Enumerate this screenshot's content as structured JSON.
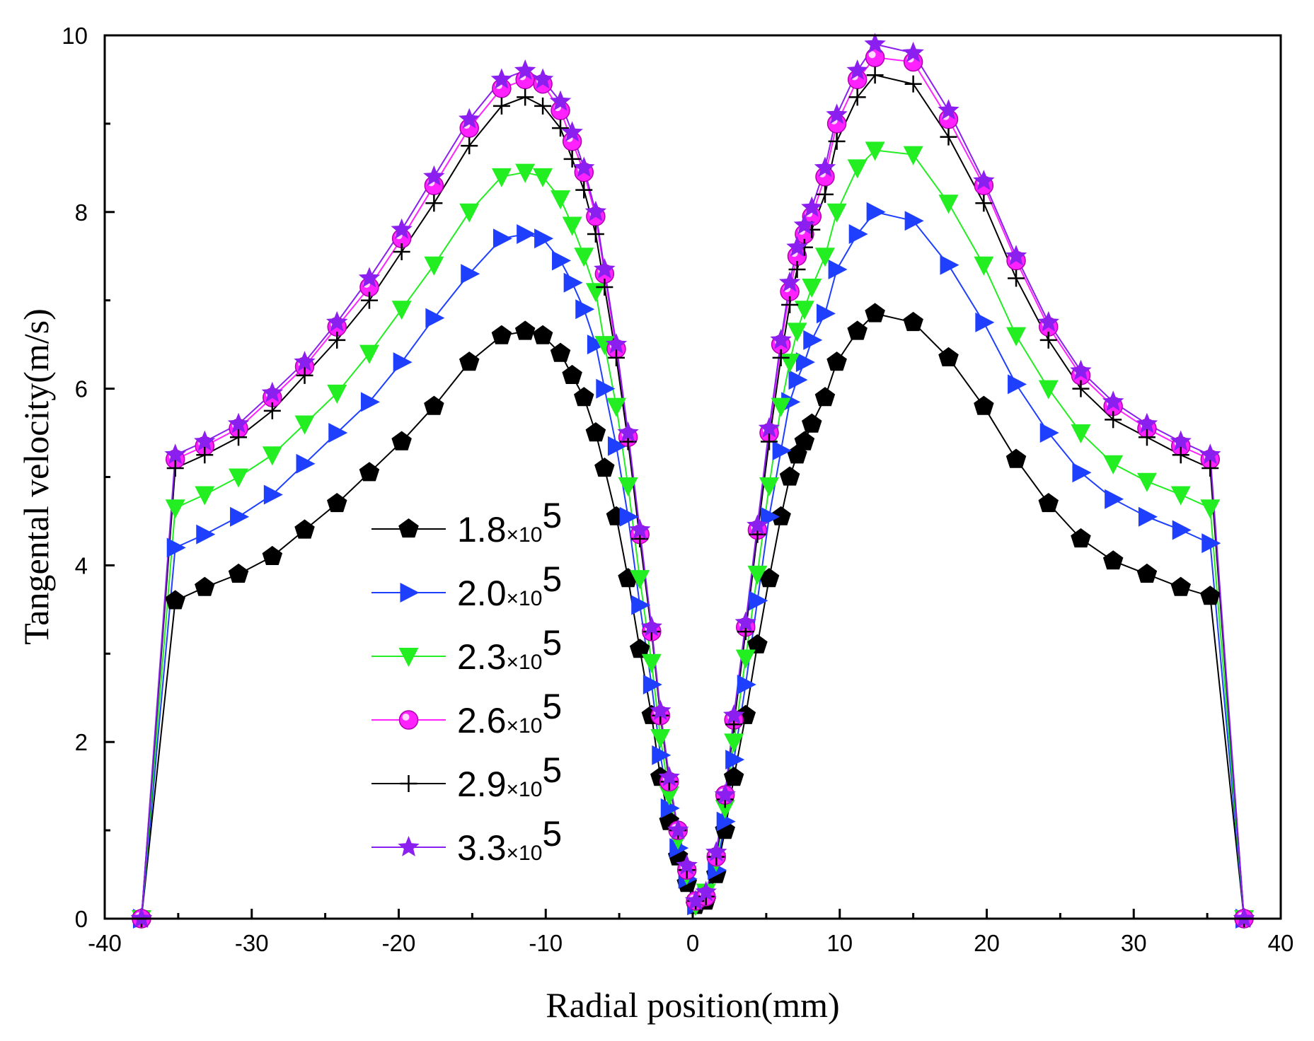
{
  "chart_data": {
    "type": "line",
    "title": "",
    "xlabel": "Radial position(mm)",
    "ylabel": "Tangental velocity(m/s)",
    "xlim": [
      -40,
      40
    ],
    "ylim": [
      0,
      10
    ],
    "x_ticks": [
      -40,
      -30,
      -20,
      -10,
      0,
      10,
      20,
      30,
      40
    ],
    "y_ticks": [
      0,
      2,
      4,
      6,
      8,
      10
    ],
    "grid": false,
    "legend_position": "center-left",
    "x": [
      -37.5,
      -35.2,
      -33.2,
      -30.9,
      -28.6,
      -26.4,
      -24.2,
      -22.0,
      -19.8,
      -17.6,
      -15.2,
      -13.0,
      -11.4,
      -10.2,
      -9.0,
      -8.2,
      -7.4,
      -6.6,
      -6.0,
      -5.2,
      -4.4,
      -3.6,
      -2.8,
      -2.2,
      -1.6,
      -1.0,
      -0.4,
      0.2,
      0.9,
      1.6,
      2.2,
      2.8,
      3.6,
      4.4,
      5.2,
      6.0,
      6.6,
      7.1,
      7.6,
      8.1,
      9.0,
      9.8,
      11.2,
      12.4,
      15.0,
      17.4,
      19.8,
      22.0,
      24.2,
      26.4,
      28.6,
      30.9,
      33.2,
      35.2,
      37.5
    ],
    "series": [
      {
        "name": "1.8×10^5",
        "coef": "1.8",
        "exp": "5",
        "color": "#000000",
        "marker": "pentagon",
        "values": [
          0.0,
          3.6,
          3.75,
          3.9,
          4.1,
          4.4,
          4.7,
          5.05,
          5.4,
          5.8,
          6.3,
          6.6,
          6.65,
          6.6,
          6.4,
          6.15,
          5.9,
          5.5,
          5.1,
          4.55,
          3.85,
          3.05,
          2.3,
          1.6,
          1.1,
          0.7,
          0.4,
          0.15,
          0.2,
          0.5,
          1.0,
          1.6,
          2.3,
          3.1,
          3.85,
          4.55,
          5.0,
          5.25,
          5.4,
          5.6,
          5.9,
          6.3,
          6.65,
          6.85,
          6.75,
          6.35,
          5.8,
          5.2,
          4.7,
          4.3,
          4.05,
          3.9,
          3.75,
          3.65,
          0.0
        ]
      },
      {
        "name": "2.0×10^5",
        "coef": "2.0",
        "exp": "5",
        "color": "#1f3fff",
        "marker": "triangle-right",
        "values": [
          0.0,
          4.2,
          4.35,
          4.55,
          4.8,
          5.15,
          5.5,
          5.85,
          6.3,
          6.8,
          7.3,
          7.7,
          7.75,
          7.7,
          7.45,
          7.2,
          6.9,
          6.5,
          6.0,
          5.35,
          4.55,
          3.55,
          2.65,
          1.85,
          1.25,
          0.8,
          0.45,
          0.15,
          0.25,
          0.55,
          1.1,
          1.8,
          2.65,
          3.6,
          4.55,
          5.3,
          5.85,
          6.1,
          6.3,
          6.55,
          6.85,
          7.35,
          7.75,
          8.0,
          7.9,
          7.4,
          6.75,
          6.05,
          5.5,
          5.05,
          4.75,
          4.55,
          4.4,
          4.25,
          0.0
        ]
      },
      {
        "name": "2.3×10^5",
        "coef": "2.3",
        "exp": "5",
        "color": "#22ee22",
        "marker": "triangle-down",
        "values": [
          0.0,
          4.65,
          4.8,
          5.0,
          5.25,
          5.6,
          5.95,
          6.4,
          6.9,
          7.4,
          8.0,
          8.4,
          8.45,
          8.4,
          8.15,
          7.85,
          7.5,
          7.1,
          6.5,
          5.8,
          4.9,
          3.85,
          2.9,
          2.05,
          1.4,
          0.9,
          0.5,
          0.15,
          0.3,
          0.65,
          1.25,
          2.0,
          2.95,
          3.9,
          4.9,
          5.8,
          6.3,
          6.65,
          6.9,
          7.15,
          7.5,
          8.0,
          8.5,
          8.7,
          8.65,
          8.1,
          7.4,
          6.6,
          6.0,
          5.5,
          5.15,
          4.95,
          4.8,
          4.65,
          0.0
        ]
      },
      {
        "name": "2.6×10^5",
        "coef": "2.6",
        "exp": "5",
        "color": "#ff22ff",
        "marker": "circle",
        "values": [
          0.0,
          5.2,
          5.35,
          5.55,
          5.9,
          6.25,
          6.7,
          7.15,
          7.7,
          8.3,
          8.95,
          9.4,
          9.5,
          9.45,
          9.15,
          8.8,
          8.45,
          7.95,
          7.3,
          6.45,
          5.45,
          4.35,
          3.25,
          2.3,
          1.55,
          1.0,
          0.55,
          0.2,
          0.25,
          0.7,
          1.4,
          2.25,
          3.3,
          4.4,
          5.5,
          6.5,
          7.1,
          7.5,
          7.75,
          7.95,
          8.4,
          9.0,
          9.5,
          9.75,
          9.7,
          9.05,
          8.3,
          7.45,
          6.7,
          6.15,
          5.8,
          5.55,
          5.35,
          5.2,
          0.0
        ]
      },
      {
        "name": "2.9×10^5",
        "coef": "2.9",
        "exp": "5",
        "color": "#000000",
        "marker": "plus",
        "values": [
          0.0,
          5.1,
          5.25,
          5.45,
          5.75,
          6.15,
          6.55,
          7.0,
          7.55,
          8.1,
          8.75,
          9.2,
          9.3,
          9.2,
          8.95,
          8.6,
          8.25,
          7.75,
          7.15,
          6.35,
          5.4,
          4.3,
          3.25,
          2.3,
          1.55,
          1.0,
          0.55,
          0.2,
          0.25,
          0.7,
          1.35,
          2.2,
          3.25,
          4.35,
          5.4,
          6.35,
          6.95,
          7.35,
          7.6,
          7.8,
          8.2,
          8.8,
          9.3,
          9.55,
          9.45,
          8.85,
          8.1,
          7.25,
          6.55,
          6.0,
          5.65,
          5.45,
          5.25,
          5.1,
          0.0
        ]
      },
      {
        "name": "3.3×10^5",
        "coef": "3.3",
        "exp": "5",
        "color": "#8b1fef",
        "marker": "star",
        "values": [
          0.0,
          5.25,
          5.4,
          5.6,
          5.95,
          6.3,
          6.75,
          7.25,
          7.8,
          8.4,
          9.05,
          9.5,
          9.6,
          9.5,
          9.25,
          8.9,
          8.5,
          8.0,
          7.35,
          6.5,
          5.5,
          4.4,
          3.3,
          2.35,
          1.6,
          1.0,
          0.6,
          0.2,
          0.3,
          0.75,
          1.4,
          2.3,
          3.35,
          4.45,
          5.55,
          6.55,
          7.2,
          7.6,
          7.85,
          8.05,
          8.5,
          9.1,
          9.6,
          9.9,
          9.8,
          9.15,
          8.35,
          7.5,
          6.75,
          6.2,
          5.85,
          5.6,
          5.4,
          5.25,
          0.0
        ]
      }
    ]
  }
}
